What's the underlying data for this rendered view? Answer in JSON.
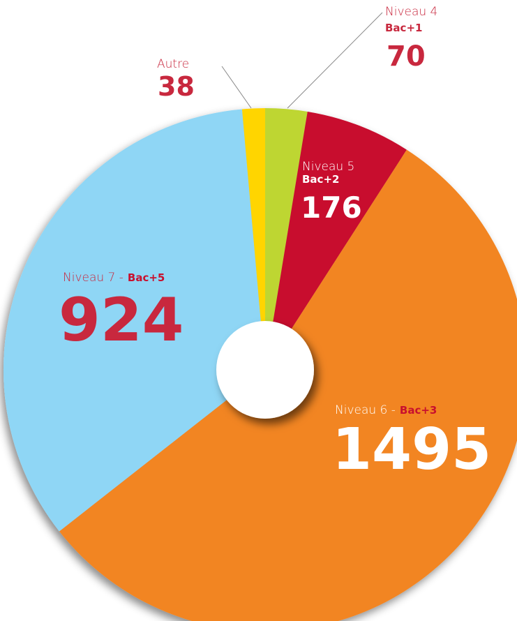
{
  "chart_data": {
    "type": "donut",
    "categories": [
      "Niveau 4",
      "Niveau 5",
      "Niveau 6 -",
      "Niveau 7 -",
      "Autre"
    ],
    "sublabels": [
      "Bac+1",
      "Bac+2",
      "Bac+3",
      "Bac+5",
      null
    ],
    "values": [
      70,
      176,
      1495,
      924,
      38
    ],
    "colors": [
      "#bed630",
      "#c8102e",
      "#f28522",
      "#8fd6f5",
      "#ffd500"
    ]
  }
}
